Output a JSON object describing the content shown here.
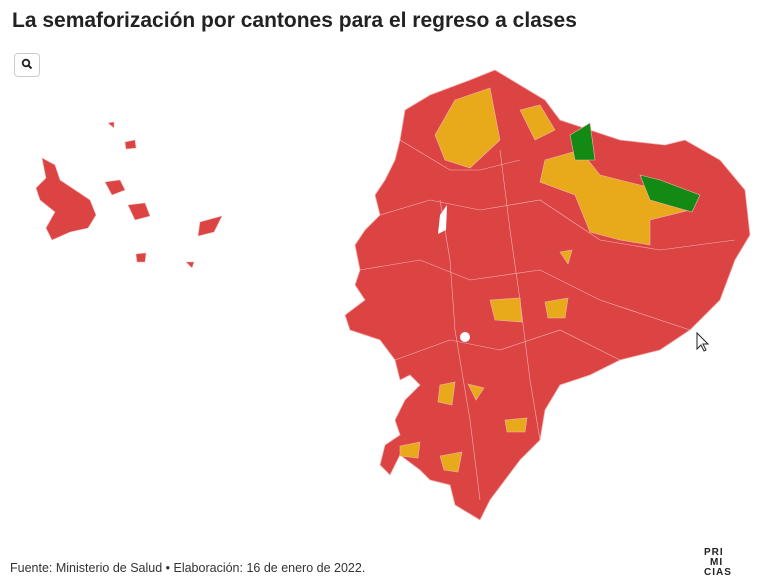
{
  "title": "La semaforización por cantones para el regreso a clases",
  "footer": "Fuente: Ministerio de Salud • Elaboración: 16 de enero de 2022.",
  "logo": {
    "lines": [
      "PRI",
      "MI",
      "CIAS"
    ]
  }
}
